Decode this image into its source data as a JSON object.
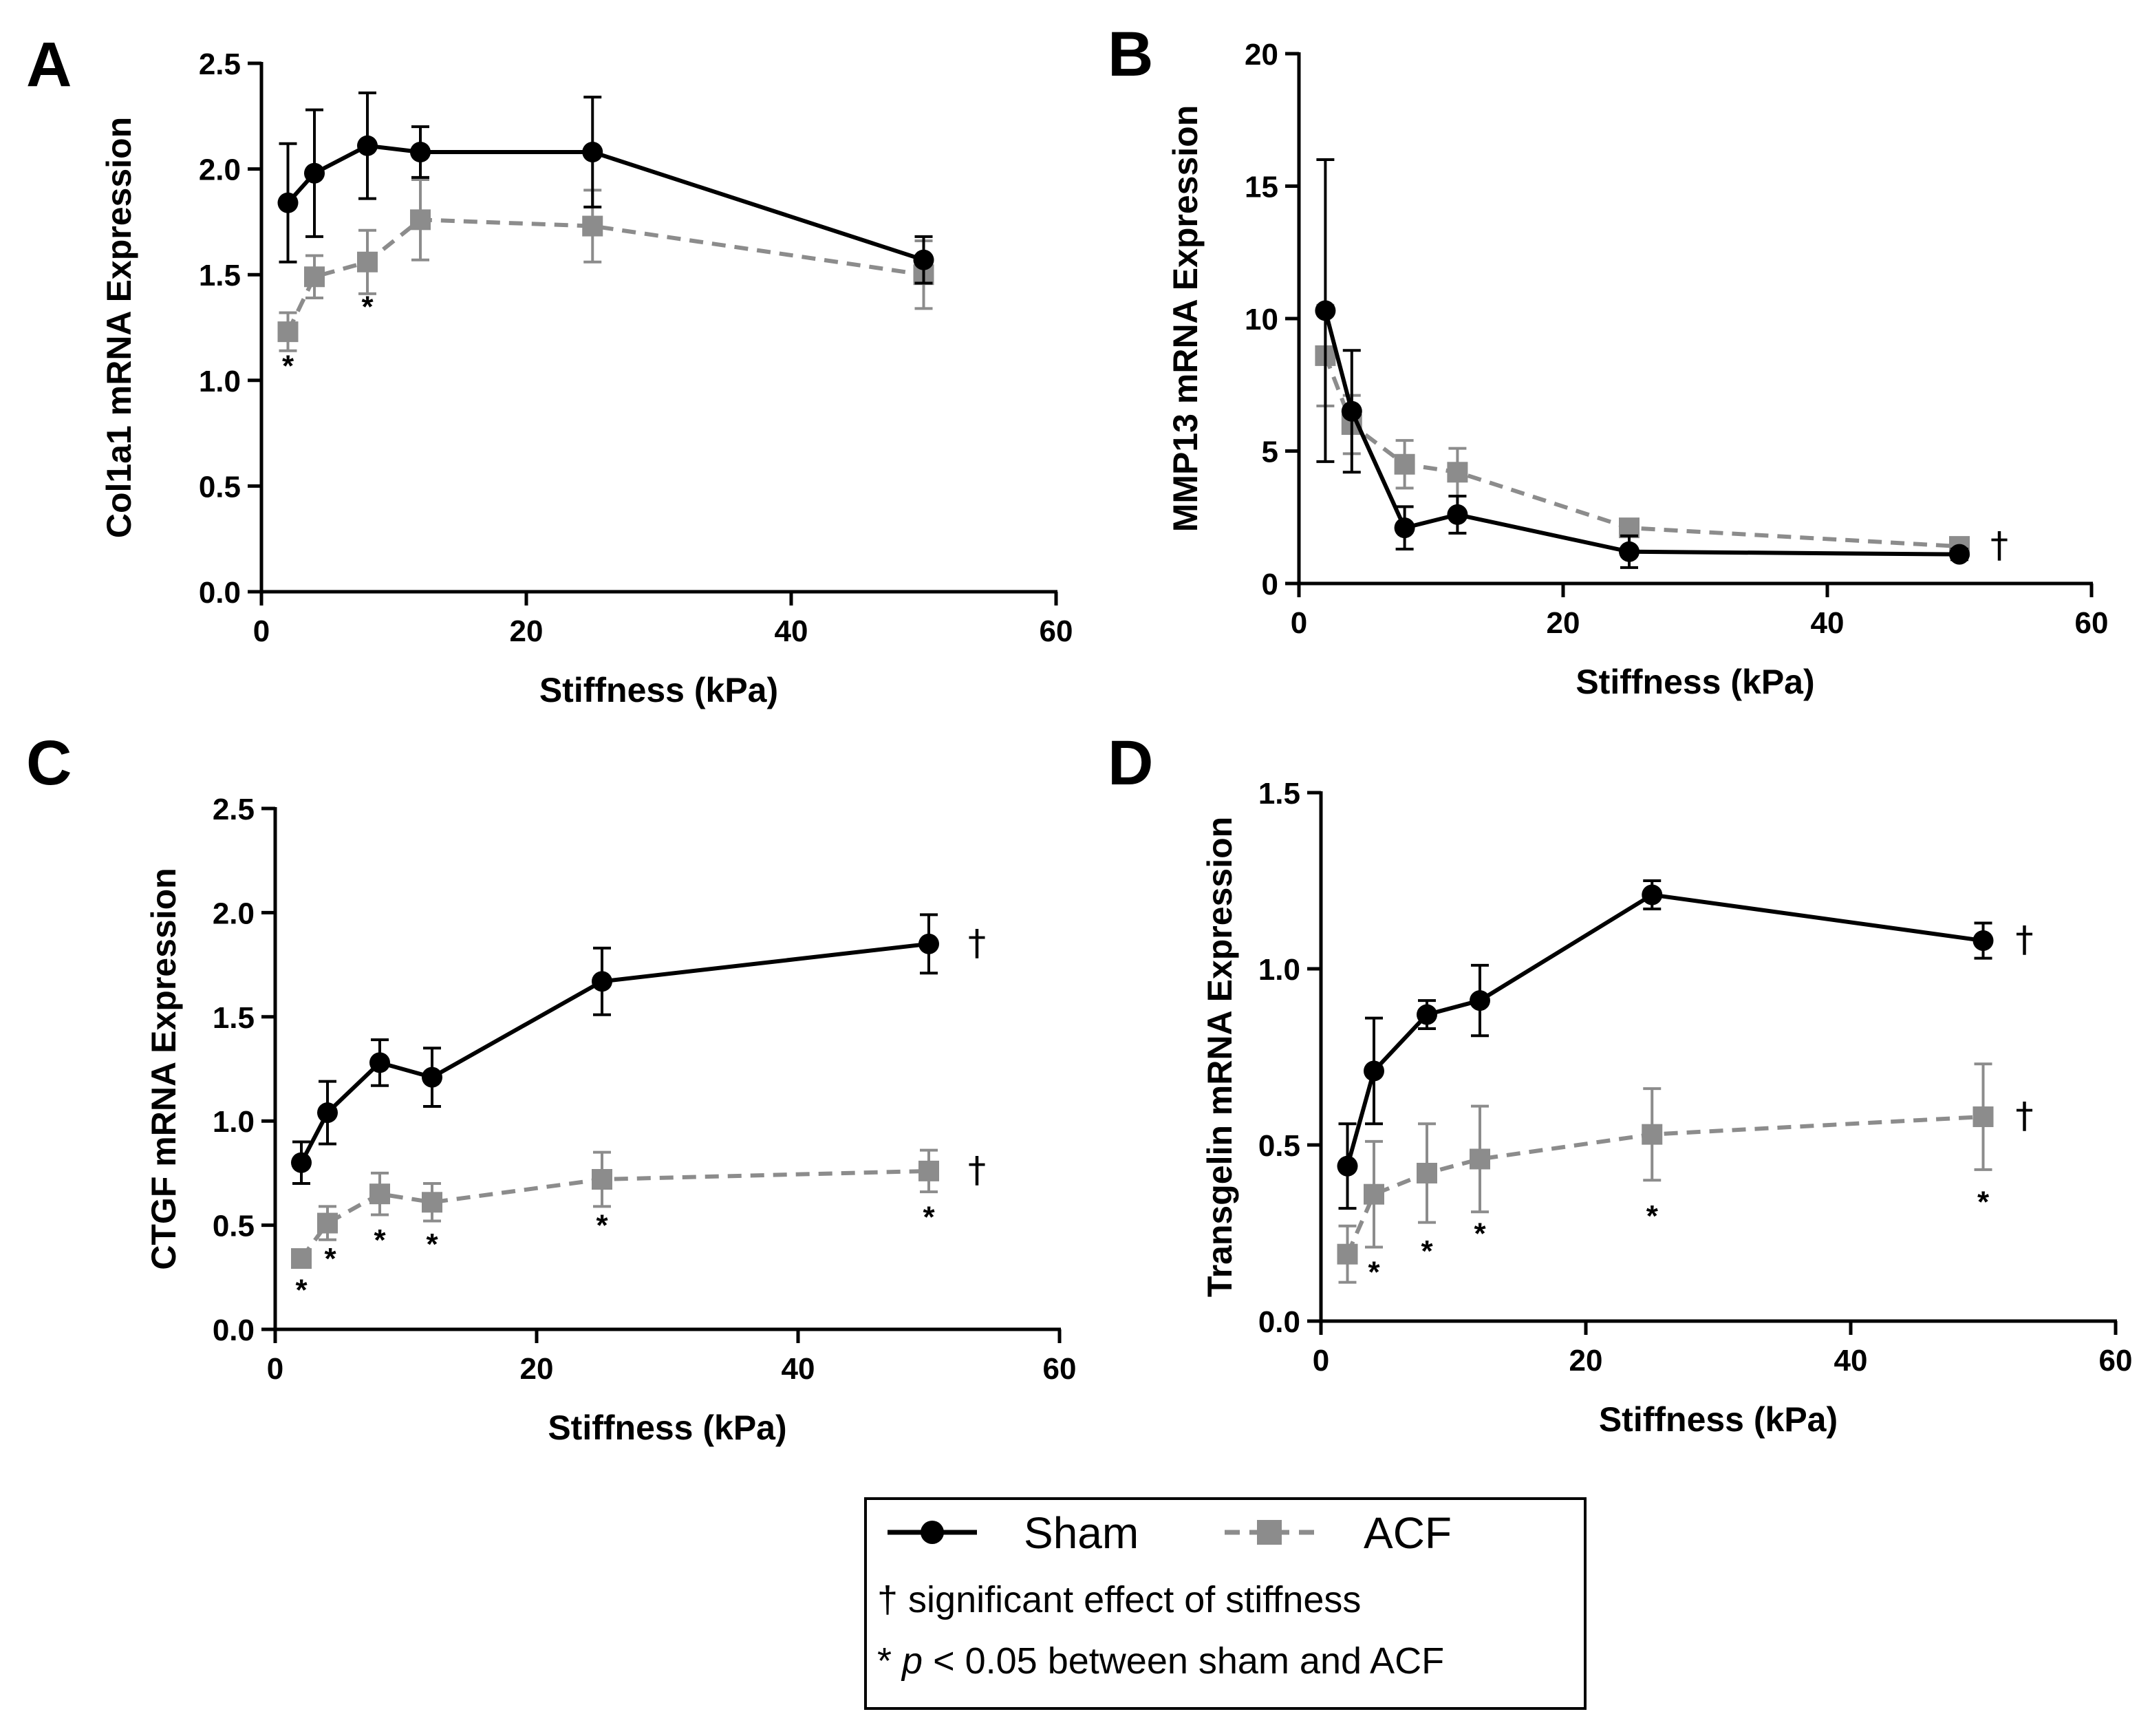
{
  "chart_data": [
    {
      "type": "line",
      "panel": "A",
      "xlabel": "Stiffness (kPa)",
      "ylabel": "Col1a1 mRNA Expression",
      "xlim": [
        0,
        60
      ],
      "ylim": [
        0,
        2.5
      ],
      "xticks": [
        0,
        20,
        40,
        60
      ],
      "yticks": [
        0.0,
        0.5,
        1.0,
        1.5,
        2.0,
        2.5
      ],
      "x": [
        2,
        4,
        8,
        12,
        25,
        50
      ],
      "series": [
        {
          "name": "Sham",
          "values": [
            1.84,
            1.98,
            2.11,
            2.08,
            2.08,
            1.57
          ],
          "errors": [
            0.28,
            0.3,
            0.25,
            0.12,
            0.26,
            0.11
          ]
        },
        {
          "name": "ACF",
          "values": [
            1.23,
            1.49,
            1.56,
            1.76,
            1.73,
            1.5
          ],
          "errors": [
            0.09,
            0.1,
            0.15,
            0.19,
            0.17,
            0.16
          ]
        }
      ],
      "significance": [
        {
          "x": 2,
          "y": 1.02,
          "label": "*"
        },
        {
          "x": 8,
          "y": 1.3,
          "label": "*"
        }
      ],
      "stiffness_effect": []
    },
    {
      "type": "line",
      "panel": "B",
      "xlabel": "Stiffness (kPa)",
      "ylabel": "MMP13 mRNA Expression",
      "xlim": [
        0,
        60
      ],
      "ylim": [
        0,
        20
      ],
      "xticks": [
        0,
        20,
        40,
        60
      ],
      "yticks": [
        0,
        5,
        10,
        15,
        20
      ],
      "x": [
        2,
        4,
        8,
        12,
        25,
        50
      ],
      "series": [
        {
          "name": "Sham",
          "values": [
            10.3,
            6.5,
            2.1,
            2.6,
            1.2,
            1.1
          ],
          "errors": [
            5.7,
            2.3,
            0.8,
            0.7,
            0.6,
            0.2
          ]
        },
        {
          "name": "ACF",
          "values": [
            8.6,
            6.0,
            4.5,
            4.2,
            2.1,
            1.4
          ],
          "errors": [
            1.9,
            1.1,
            0.9,
            0.9,
            0.3,
            0.2
          ]
        }
      ],
      "significance": [],
      "stiffness_effect": [
        {
          "series": "ACF",
          "label": "†"
        }
      ]
    },
    {
      "type": "line",
      "panel": "C",
      "xlabel": "Stiffness (kPa)",
      "ylabel": "CTGF mRNA Expression",
      "xlim": [
        0,
        60
      ],
      "ylim": [
        0,
        2.5
      ],
      "xticks": [
        0,
        20,
        40,
        60
      ],
      "yticks": [
        0.0,
        0.5,
        1.0,
        1.5,
        2.0,
        2.5
      ],
      "x": [
        2,
        4,
        8,
        12,
        25,
        50
      ],
      "series": [
        {
          "name": "Sham",
          "values": [
            0.8,
            1.04,
            1.28,
            1.21,
            1.67,
            1.85
          ],
          "errors": [
            0.1,
            0.15,
            0.11,
            0.14,
            0.16,
            0.14
          ]
        },
        {
          "name": "ACF",
          "values": [
            0.34,
            0.51,
            0.65,
            0.61,
            0.72,
            0.76
          ],
          "errors": [
            0.04,
            0.08,
            0.1,
            0.09,
            0.13,
            0.1
          ]
        }
      ],
      "significance": [
        {
          "x": 2,
          "y": 0.14,
          "label": "*"
        },
        {
          "x": 4,
          "y": 0.29,
          "label": "*"
        },
        {
          "x": 8,
          "y": 0.38,
          "label": "*"
        },
        {
          "x": 12,
          "y": 0.36,
          "label": "*"
        },
        {
          "x": 25,
          "y": 0.45,
          "label": "*"
        },
        {
          "x": 50,
          "y": 0.49,
          "label": "*"
        }
      ],
      "stiffness_effect": [
        {
          "series": "Sham",
          "label": "†"
        },
        {
          "series": "ACF",
          "label": "†"
        }
      ]
    },
    {
      "type": "line",
      "panel": "D",
      "xlabel": "Stiffness (kPa)",
      "ylabel": "Transgelin mRNA Expression",
      "xlim": [
        0,
        60
      ],
      "ylim": [
        0,
        1.5
      ],
      "xticks": [
        0,
        20,
        40,
        60
      ],
      "yticks": [
        0.0,
        0.5,
        1.0,
        1.5
      ],
      "x": [
        2,
        4,
        8,
        12,
        25,
        50
      ],
      "series": [
        {
          "name": "Sham",
          "values": [
            0.44,
            0.71,
            0.87,
            0.91,
            1.21,
            1.08
          ],
          "errors": [
            0.12,
            0.15,
            0.04,
            0.1,
            0.04,
            0.05
          ]
        },
        {
          "name": "ACF",
          "values": [
            0.19,
            0.36,
            0.42,
            0.46,
            0.53,
            0.58
          ],
          "errors": [
            0.08,
            0.15,
            0.14,
            0.15,
            0.13,
            0.15
          ]
        }
      ],
      "significance": [
        {
          "x": 4,
          "y": 0.11,
          "label": "*"
        },
        {
          "x": 8,
          "y": 0.17,
          "label": "*"
        },
        {
          "x": 12,
          "y": 0.22,
          "label": "*"
        },
        {
          "x": 25,
          "y": 0.27,
          "label": "*"
        },
        {
          "x": 50,
          "y": 0.31,
          "label": "*"
        }
      ],
      "stiffness_effect": [
        {
          "series": "Sham",
          "label": "†"
        },
        {
          "series": "ACF",
          "label": "†"
        }
      ]
    }
  ],
  "legend": {
    "sham_label": "Sham",
    "acf_label": "ACF",
    "note_dagger": "† significant effect of stiffness",
    "note_star_prefix": "* ",
    "note_star_p": "p",
    "note_star_rest": " < 0.05 between sham and ACF"
  },
  "colors": {
    "sham": "#000000",
    "acf": "#8c8c8c",
    "axis": "#000000"
  }
}
